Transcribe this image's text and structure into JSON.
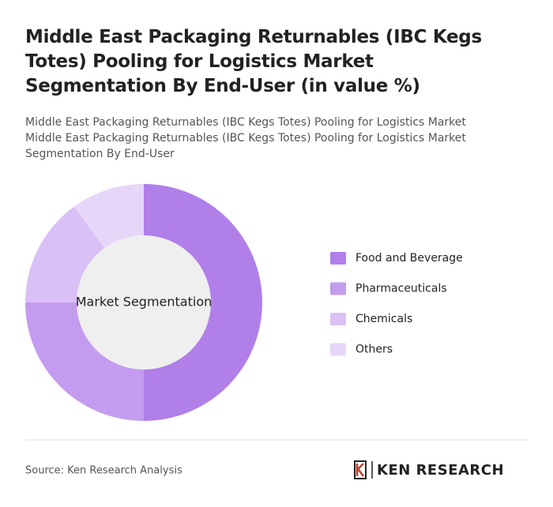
{
  "chart_data": {
    "type": "pie",
    "title": "Middle East Packaging Returnables (IBC Kegs Totes) Pooling for Logistics Market Segmentation By End-User (in value %)",
    "subtitle": "Middle East Packaging Returnables (IBC Kegs Totes) Pooling for Logistics Market Middle East Packaging Returnables (IBC Kegs Totes) Pooling for Logistics Market Segmentation By End-User",
    "center_label": "Market Segmentation",
    "categories": [
      "Food and Beverage",
      "Pharmaceuticals",
      "Chemicals",
      "Others"
    ],
    "values": [
      50,
      25,
      15,
      10
    ],
    "colors": [
      "#b07fe8",
      "#c39cef",
      "#d9c0f5",
      "#e6d6f8"
    ],
    "legend": "right"
  },
  "source": "Source: Ken Research Analysis",
  "logo": "KEN RESEARCH"
}
